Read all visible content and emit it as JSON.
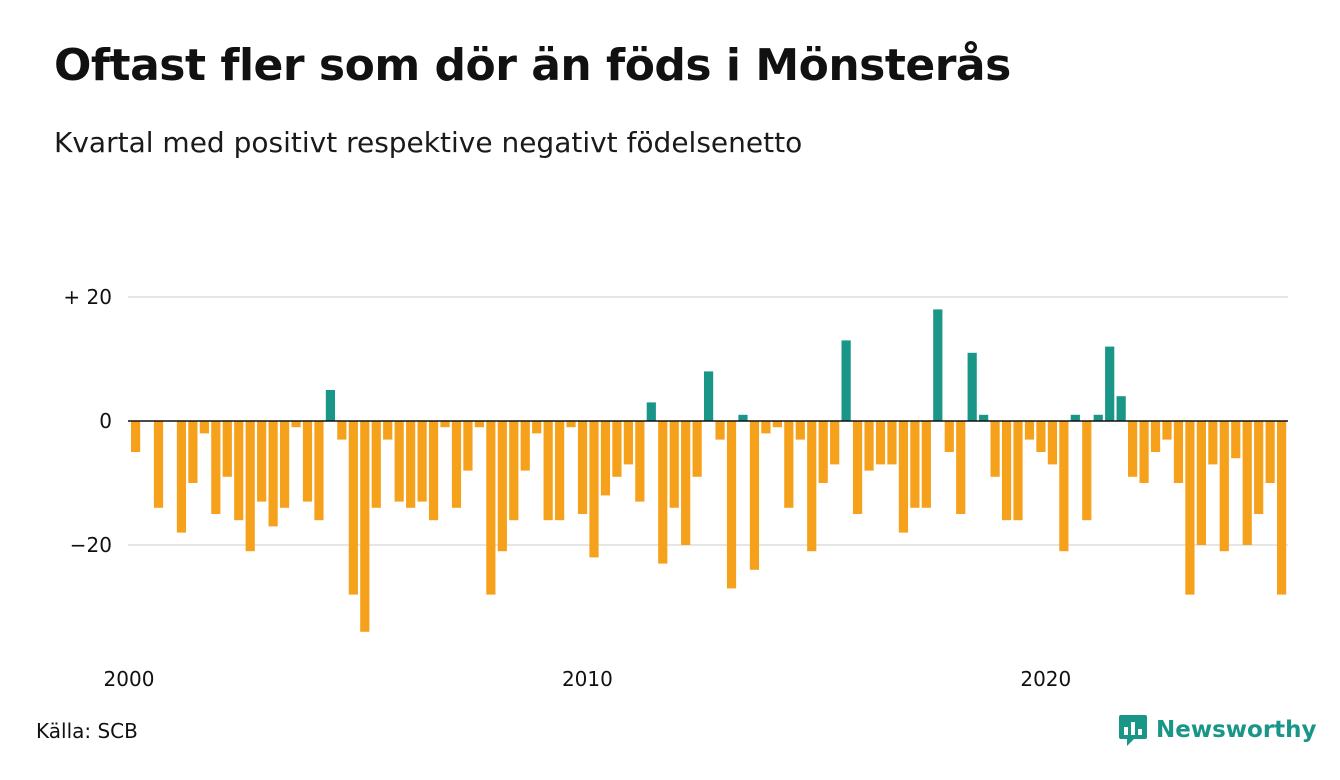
{
  "header": {
    "title": "Oftast fler som dör än föds i Mönsterås",
    "subtitle": "Kvartal med positivt respektive negativt födelsenetto"
  },
  "footer": {
    "source": "Källa: SCB",
    "brand": "Newsworthy"
  },
  "colors": {
    "positive": "#1a9688",
    "negative": "#f5a11c",
    "grid": "#dddddd",
    "zero_line": "#111111",
    "brand": "#1a9688"
  },
  "chart_data": {
    "type": "bar",
    "x_start": "2000 Q1",
    "x_tick_labels": [
      "2000",
      "2010",
      "2020"
    ],
    "y_tick_labels": [
      "+ 20",
      "0",
      "−20"
    ],
    "y_ticks": [
      20,
      0,
      -20
    ],
    "ylim": [
      -36,
      24
    ],
    "grid": true,
    "values": [
      -5,
      0,
      -14,
      0,
      -18,
      -10,
      -2,
      -15,
      -9,
      -16,
      -21,
      -13,
      -17,
      -14,
      -1,
      -13,
      -16,
      5,
      -3,
      -28,
      -34,
      -14,
      -3,
      -13,
      -14,
      -13,
      -16,
      -1,
      -14,
      -8,
      -1,
      -28,
      -21,
      -16,
      -8,
      -2,
      -16,
      -16,
      -1,
      -15,
      -22,
      -12,
      -9,
      -7,
      -13,
      3,
      -23,
      -14,
      -20,
      -9,
      8,
      -3,
      -27,
      1,
      -24,
      -2,
      -1,
      -14,
      -3,
      -21,
      -10,
      -7,
      13,
      -15,
      -8,
      -7,
      -7,
      -18,
      -14,
      -14,
      18,
      -5,
      -15,
      11,
      1,
      -9,
      -16,
      -16,
      -3,
      -5,
      -7,
      -21,
      1,
      -16,
      1,
      12,
      4,
      -9,
      -10,
      -5,
      -3,
      -10,
      -28,
      -20,
      -7,
      -21,
      -6,
      -20,
      -15,
      -10,
      -28
    ]
  }
}
